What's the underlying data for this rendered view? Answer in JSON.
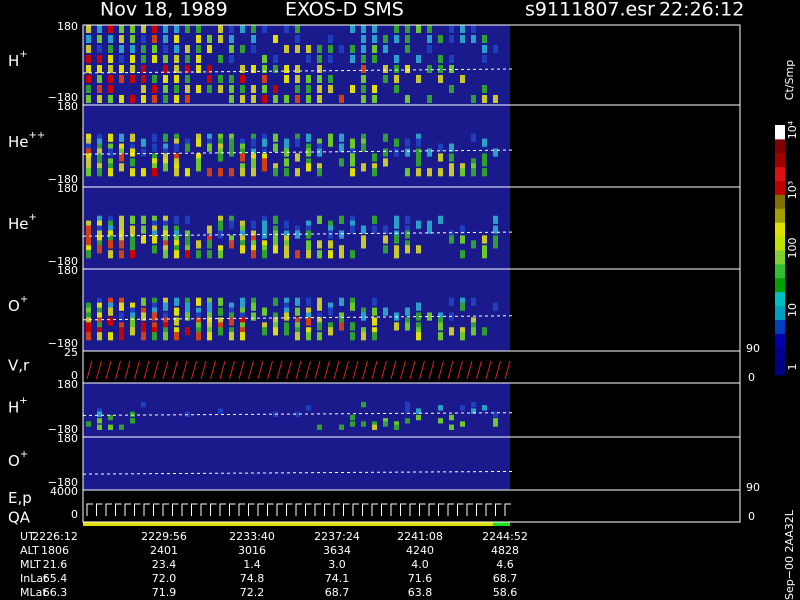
{
  "header": {
    "date": "Nov 18, 1989",
    "instrument": "EXOS-D SMS",
    "file": "s9111807.esr",
    "time": "22:26:12"
  },
  "panels": [
    {
      "label": "H",
      "charge": "+",
      "top": "180",
      "bottom": "−180"
    },
    {
      "label": "He",
      "charge": "++",
      "top": "180",
      "bottom": "−180"
    },
    {
      "label": "He",
      "charge": "+",
      "top": "180",
      "bottom": "−180"
    },
    {
      "label": "O",
      "charge": "+",
      "top": "180",
      "bottom": "−180"
    },
    {
      "label": "V,r",
      "top": "25",
      "bottom": "0",
      "right_top": "90",
      "right_bottom": "0"
    },
    {
      "label": "H",
      "charge": "+",
      "top": "180",
      "bottom": "−180"
    },
    {
      "label": "O",
      "charge": "+",
      "top": "180",
      "bottom": "−180"
    },
    {
      "label": "E,p",
      "label2": "QA",
      "top": "4000",
      "bottom": "0",
      "right_top": "90",
      "right_bottom": "0"
    }
  ],
  "colorbar": {
    "unit": "Ct/Smp",
    "ticks": [
      "1",
      "10",
      "100",
      "10³",
      "10⁴"
    ]
  },
  "table": {
    "rows": [
      [
        "UT",
        "2226:12",
        "2229:56",
        "2233:40",
        "2237:24",
        "2241:08",
        "2244:52"
      ],
      [
        "ALT",
        "1806",
        "2401",
        "3016",
        "3634",
        "4240",
        "4828"
      ],
      [
        "MLT",
        "21.6",
        "23.4",
        "1.4",
        "3.0",
        "4.0",
        "4.6"
      ],
      [
        "InLat",
        "65.4",
        "72.0",
        "74.8",
        "74.1",
        "71.6",
        "68.7"
      ],
      [
        "MLat",
        "66.3",
        "71.9",
        "72.2",
        "68.7",
        "63.8",
        "58.6"
      ]
    ]
  },
  "footer": "Sep−00 2AA32L"
}
